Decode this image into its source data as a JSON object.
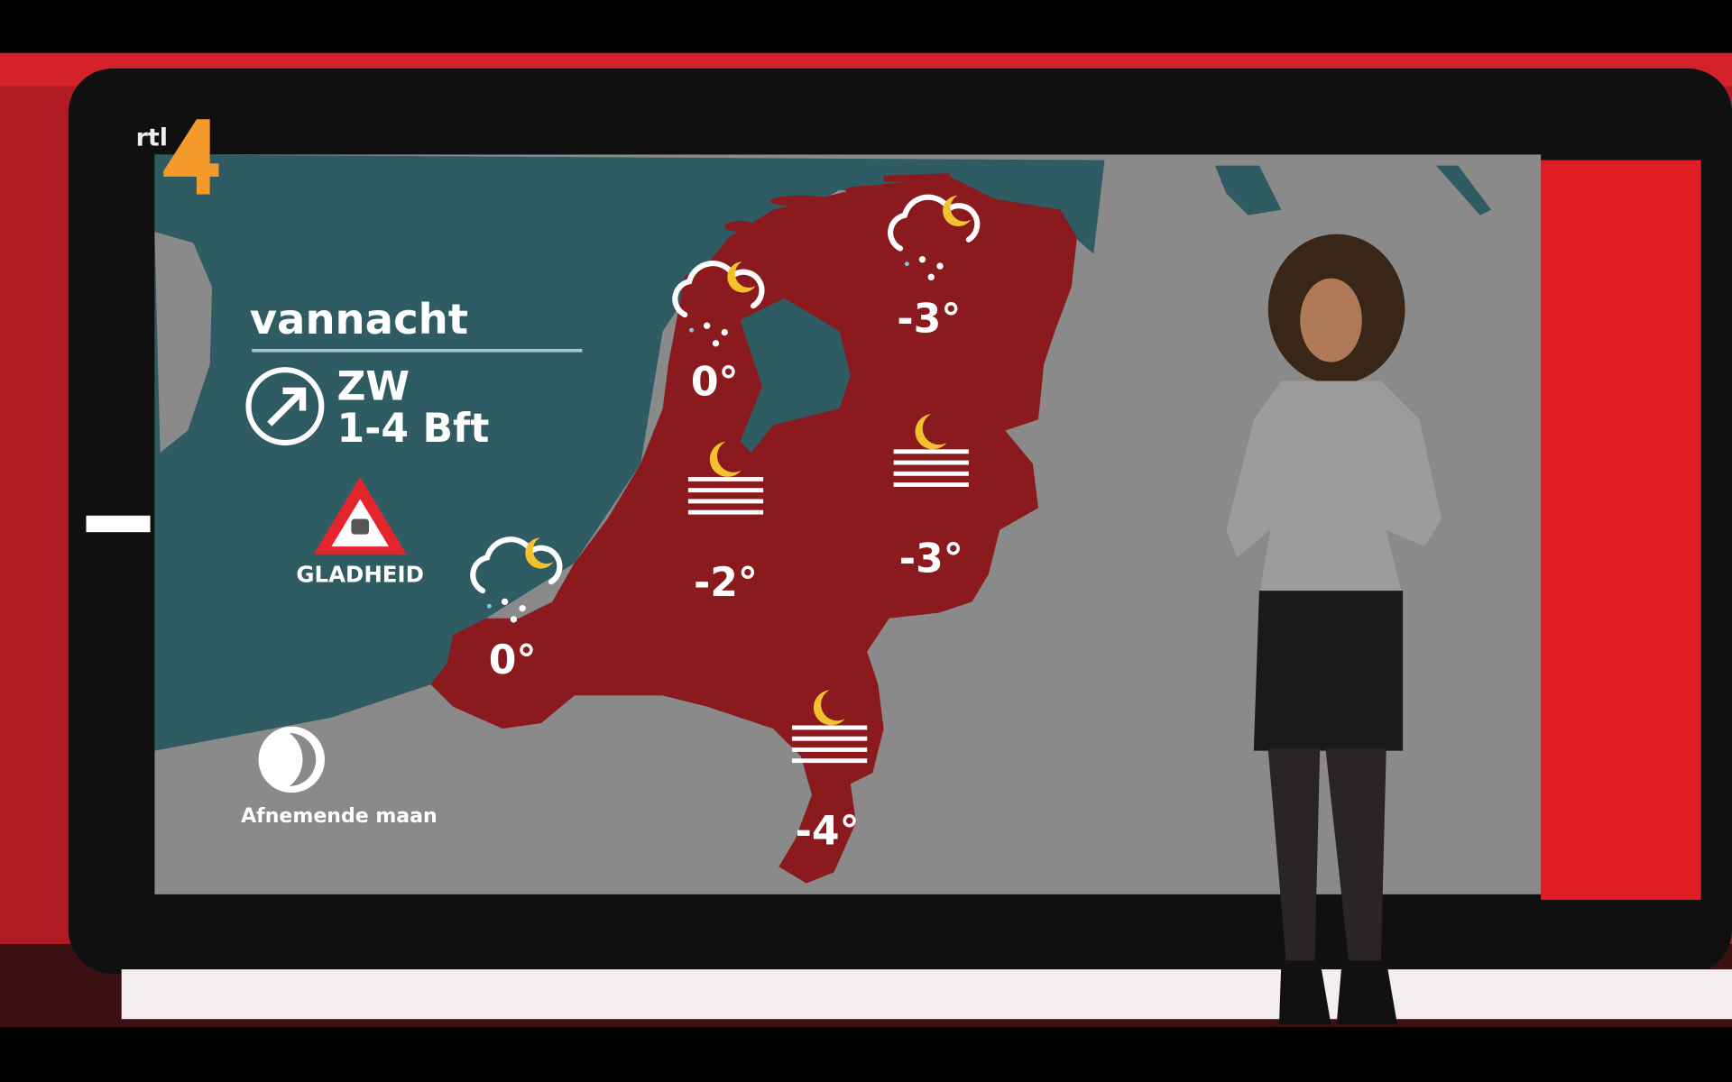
{
  "channel": {
    "logo_text": "rtl 4",
    "logo_color": "#f39a2a"
  },
  "panel": {
    "title": "vannacht",
    "wind": {
      "direction": "ZW",
      "force": "1-4 Bft",
      "icon": "arrow-up-right-circle-icon"
    },
    "warning": {
      "label": "GLADHEID",
      "icon": "slippery-road-warning-icon"
    },
    "moon": {
      "label": "Afnemende maan",
      "icon": "waning-moon-icon"
    }
  },
  "map": {
    "colors": {
      "sea": "#2f5c63",
      "land": "#8a8a8a",
      "netherlands": "#8a1a1e",
      "moon": "#f2c12e"
    },
    "stations": [
      {
        "region": "noord-holland",
        "temp": "0°",
        "icon": "cloud-snow-moon-icon"
      },
      {
        "region": "groningen",
        "temp": "-3°",
        "icon": "cloud-snow-moon-icon"
      },
      {
        "region": "zeeland",
        "temp": "0°",
        "icon": "cloud-snow-moon-icon"
      },
      {
        "region": "utrecht",
        "temp": "-2°",
        "icon": "fog-moon-icon"
      },
      {
        "region": "overijssel",
        "temp": "-3°",
        "icon": "fog-moon-icon"
      },
      {
        "region": "limburg",
        "temp": "-4°",
        "icon": "fog-moon-icon"
      }
    ]
  }
}
